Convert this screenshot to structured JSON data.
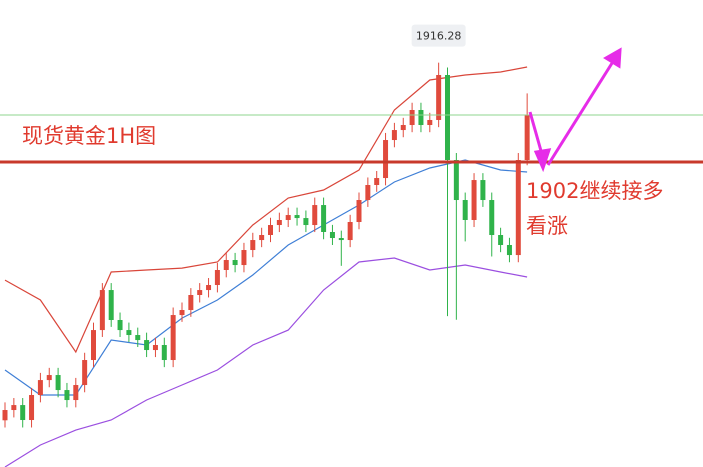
{
  "chart_data": {
    "type": "candlestick",
    "title": "现货黄金1H图",
    "annotation": [
      "1902继续接多",
      "看涨"
    ],
    "ylim": [
      1860,
      1925
    ],
    "up_color": "#e04a3c",
    "down_color": "#2fb34a",
    "open": [
      1866.5,
      1867.93,
      1868.62,
      1866.54,
      1870.02,
      1872.1,
      1872.8,
      1870.71,
      1869.32,
      1871.41,
      1874.89,
      1879.06,
      1884.63,
      1880.46,
      1879.06,
      1878.37,
      1877.67,
      1876.28,
      1876.98,
      1874.89,
      1881.15,
      1881.85,
      1883.94,
      1884.63,
      1885.33,
      1887.42,
      1888.81,
      1888.11,
      1890.2,
      1891.59,
      1892.29,
      1893.68,
      1894.38,
      1895.07,
      1894.65,
      1893.68,
      1896.46,
      1892.71,
      1891.87,
      1891.59,
      1894.1,
      1897.16,
      1899.25,
      1900.22,
      1905.51,
      1906.9,
      1907.6,
      1909.69,
      1907.6,
      1908.3,
      1914.56,
      1902.73,
      1897.16,
      1894.38,
      1899.94,
      1897.16,
      1892.29,
      1890.9,
      1889.5,
      1902.73
    ],
    "high": [
      1869.0,
      1869.6,
      1869.6,
      1871.0,
      1873.1,
      1873.8,
      1873.8,
      1871.7,
      1872.4,
      1875.9,
      1880.1,
      1885.6,
      1885.6,
      1881.5,
      1880.1,
      1879.4,
      1878.7,
      1878.0,
      1878.0,
      1882.2,
      1882.9,
      1884.9,
      1885.6,
      1886.3,
      1888.4,
      1889.8,
      1889.8,
      1891.2,
      1892.6,
      1893.3,
      1894.7,
      1895.4,
      1896.1,
      1896.1,
      1895.7,
      1897.5,
      1897.5,
      1893.7,
      1892.9,
      1895.1,
      1898.2,
      1900.3,
      1901.2,
      1906.5,
      1907.9,
      1908.6,
      1910.7,
      1910.7,
      1909.3,
      1916.28,
      1915.6,
      1903.7,
      1898.2,
      1900.9,
      1900.9,
      1898.2,
      1893.3,
      1891.9,
      1903.7,
      1912.0
    ],
    "low": [
      1865.5,
      1866.9,
      1865.5,
      1865.5,
      1869.0,
      1871.1,
      1869.7,
      1868.3,
      1868.3,
      1870.4,
      1873.9,
      1878.1,
      1879.5,
      1878.1,
      1877.4,
      1876.7,
      1875.3,
      1875.3,
      1873.9,
      1873.9,
      1880.2,
      1880.9,
      1882.9,
      1883.6,
      1884.3,
      1886.4,
      1887.1,
      1887.1,
      1889.2,
      1890.6,
      1891.3,
      1892.7,
      1893.4,
      1893.6,
      1892.7,
      1892.7,
      1891.7,
      1890.9,
      1888.0,
      1890.6,
      1893.1,
      1896.2,
      1898.3,
      1899.2,
      1904.5,
      1905.9,
      1906.6,
      1906.6,
      1906.6,
      1907.3,
      1881.0,
      1880.5,
      1891.4,
      1893.4,
      1896.2,
      1889.3,
      1889.9,
      1888.5,
      1888.5,
      1902.0
    ],
    "close": [
      1867.93,
      1868.62,
      1866.54,
      1870.02,
      1872.1,
      1872.8,
      1870.71,
      1869.32,
      1871.41,
      1874.89,
      1879.06,
      1884.63,
      1880.46,
      1879.06,
      1878.37,
      1877.67,
      1876.28,
      1876.98,
      1874.89,
      1881.15,
      1881.85,
      1883.94,
      1884.63,
      1885.33,
      1887.42,
      1888.81,
      1888.11,
      1890.2,
      1891.59,
      1892.29,
      1893.68,
      1894.38,
      1895.07,
      1894.65,
      1893.68,
      1896.46,
      1892.71,
      1891.87,
      1891.59,
      1894.1,
      1897.16,
      1899.25,
      1900.22,
      1905.51,
      1906.9,
      1907.6,
      1909.69,
      1907.6,
      1908.3,
      1914.56,
      1902.73,
      1897.16,
      1894.38,
      1899.94,
      1897.16,
      1892.29,
      1890.9,
      1889.5,
      1902.73,
      1908.99
    ],
    "series": [
      {
        "color": "#d9463a",
        "x": [
          0,
          4,
          8,
          12,
          16,
          20,
          24,
          28,
          32,
          36,
          40,
          44,
          48,
          52,
          56,
          59
        ],
        "values": [
          1886.02,
          1883.24,
          1876.0,
          1887.14,
          1887.42,
          1887.69,
          1888.53,
          1893.68,
          1897.44,
          1898.55,
          1901.34,
          1909.69,
          1913.86,
          1914.56,
          1914.98,
          1915.67
        ]
      },
      {
        "color": "#3f7fd6",
        "x": [
          0,
          4,
          8,
          12,
          16,
          20,
          24,
          28,
          32,
          36,
          40,
          44,
          48,
          52,
          56,
          59
        ],
        "values": [
          1873.5,
          1870.02,
          1870.02,
          1877.67,
          1876.98,
          1880.73,
          1883.24,
          1886.72,
          1890.9,
          1893.68,
          1896.46,
          1899.67,
          1901.61,
          1902.73,
          1901.34,
          1901.06
        ]
      },
      {
        "color": "#9b4fe0",
        "x": [
          0,
          4,
          8,
          12,
          16,
          20,
          24,
          28,
          32,
          36,
          40,
          44,
          48,
          52,
          56,
          59
        ],
        "values": [
          1860.0,
          1863.06,
          1865.14,
          1866.54,
          1869.32,
          1871.41,
          1873.5,
          1876.98,
          1879.06,
          1884.63,
          1888.53,
          1889.09,
          1887.42,
          1888.11,
          1887.14,
          1886.44
        ]
      }
    ]
  }
}
